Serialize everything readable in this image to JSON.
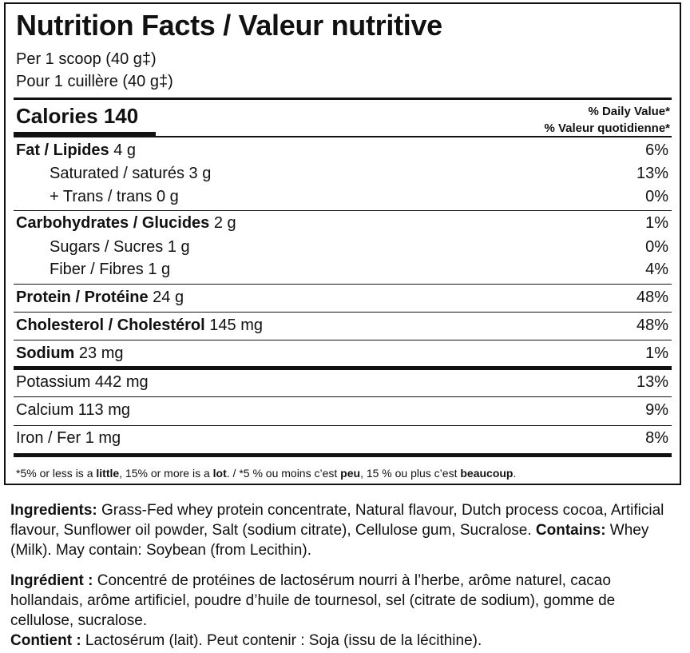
{
  "title": "Nutrition Facts / Valeur nutritive",
  "serving_en": "Per 1 scoop (40 g‡)",
  "serving_fr": "Pour 1 cuillère (40 g‡)",
  "calories_label": "Calories 140",
  "dv_header_en": "% Daily Value*",
  "dv_header_fr": "% Valeur quotidienne*",
  "nutrients": [
    {
      "label": "Fat / Lipides",
      "amount": "4 g",
      "dv": "6%"
    },
    {
      "label": "Saturated / saturés 3 g",
      "amount": "",
      "dv": "13%"
    },
    {
      "label": "+ Trans / trans 0 g",
      "amount": "",
      "dv": "0%"
    },
    {
      "label": "Carbohydrates / Glucides",
      "amount": "2 g",
      "dv": "1%"
    },
    {
      "label": "Sugars / Sucres 1 g",
      "amount": "",
      "dv": "0%"
    },
    {
      "label": "Fiber / Fibres 1 g",
      "amount": "",
      "dv": "4%"
    },
    {
      "label": "Protein / Protéine",
      "amount": "24 g",
      "dv": "48%"
    },
    {
      "label": "Cholesterol / Cholestérol",
      "amount": "145 mg",
      "dv": "48%"
    },
    {
      "label": "Sodium",
      "amount": "23 mg",
      "dv": "1%"
    },
    {
      "label": "Potassium 442 mg",
      "amount": "",
      "dv": "13%"
    },
    {
      "label": "Calcium 113 mg",
      "amount": "",
      "dv": "9%"
    },
    {
      "label": "Iron / Fer 1 mg",
      "amount": "",
      "dv": "8%"
    }
  ],
  "footnote": {
    "p1": "*5% or less is a ",
    "b1": "little",
    "p2": ", 15% or more is a ",
    "b2": "lot",
    "p3": ". / *5 % ou moins c’est ",
    "b3": "peu",
    "p4": ", 15 % ou plus c’est ",
    "b4": "beaucoup",
    "p5": "."
  },
  "ingredients_en": {
    "label": "Ingredients:",
    "text": " Grass-Fed whey protein concentrate, Natural flavour, Dutch process cocoa, Artificial flavour, Sunflower oil powder, Salt (sodium citrate), Cellulose gum, Sucralose. ",
    "contains_label": "Contains:",
    "contains_text": " Whey (Milk). May contain: Soybean (from Lecithin)."
  },
  "ingredients_fr": {
    "label": "Ingrédient :",
    "text": " Concentré de protéines de lactosérum nourri à l’herbe, arôme naturel, cacao hollandais, arôme artificiel, poudre d’huile de tournesol, sel (citrate de sodium), gomme de cellulose, sucralose.",
    "contains_label": "Contient :",
    "contains_text": " Lactosérum (lait). Peut contenir : Soja (issu de la lécithine)."
  }
}
